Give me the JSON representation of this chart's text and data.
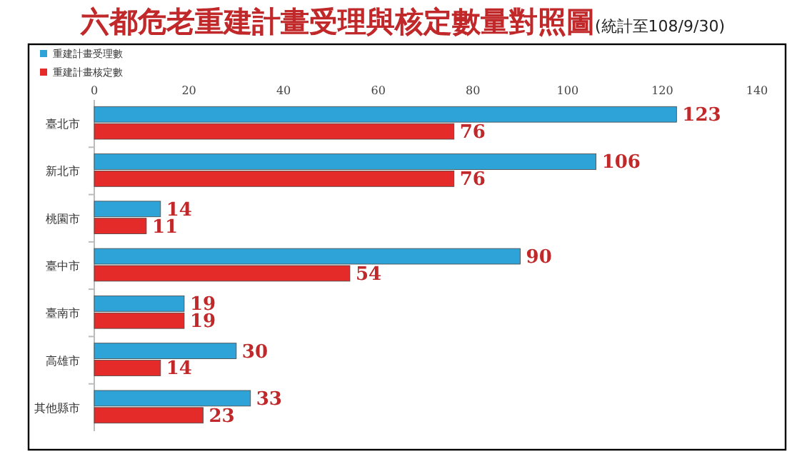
{
  "chart_data": {
    "type": "bar",
    "orientation": "horizontal",
    "title": "六都危老重建計畫受理與核定數量對照圖",
    "subtitle": "(統計至108/9/30)",
    "categories": [
      "臺北市",
      "新北市",
      "桃園市",
      "臺中市",
      "臺南市",
      "高雄市",
      "其他縣市"
    ],
    "series": [
      {
        "name": "重建計畫受理數",
        "color": "#2ea3d8",
        "values": [
          123,
          106,
          14,
          90,
          19,
          30,
          33
        ]
      },
      {
        "name": "重建計畫核定數",
        "color": "#e52a2a",
        "values": [
          76,
          76,
          11,
          54,
          19,
          14,
          23
        ]
      }
    ],
    "xlim": [
      0,
      140
    ],
    "xticks": [
      0,
      20,
      40,
      60,
      80,
      100,
      120,
      140
    ],
    "data_labels": true,
    "legend": "top left",
    "grid": false
  }
}
